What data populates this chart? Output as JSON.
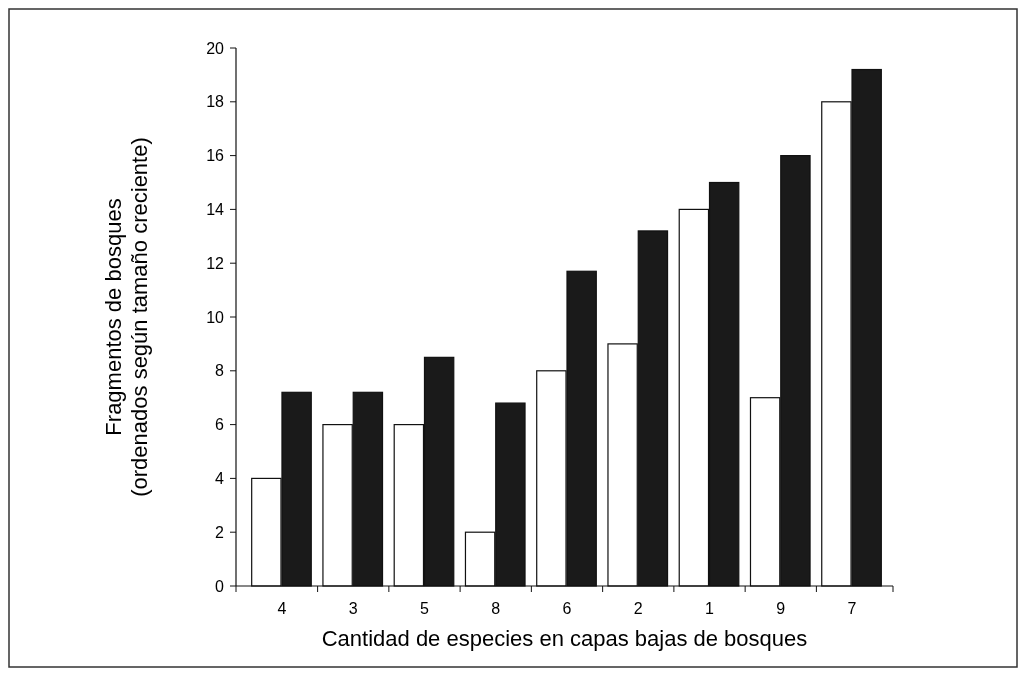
{
  "chart_data": {
    "type": "bar",
    "xlabel": "Cantidad de especies en capas bajas de bosques",
    "ylabel": "Fragmentos de bosques\n(ordenados según tamaño creciente)",
    "categories": [
      "4",
      "3",
      "5",
      "8",
      "6",
      "2",
      "1",
      "9",
      "7"
    ],
    "series": [
      {
        "color": "#ffffff",
        "values": [
          4,
          6,
          6,
          2,
          8,
          9,
          14,
          7,
          18
        ]
      },
      {
        "color": "#1a1a1a",
        "values": [
          7.2,
          7.2,
          8.5,
          6.8,
          11.7,
          13.2,
          15,
          16,
          19.2
        ]
      }
    ],
    "ylim": [
      0,
      20
    ],
    "yticks": [
      0,
      2,
      4,
      6,
      8,
      10,
      12,
      14,
      16,
      18,
      20
    ],
    "grid": false
  }
}
